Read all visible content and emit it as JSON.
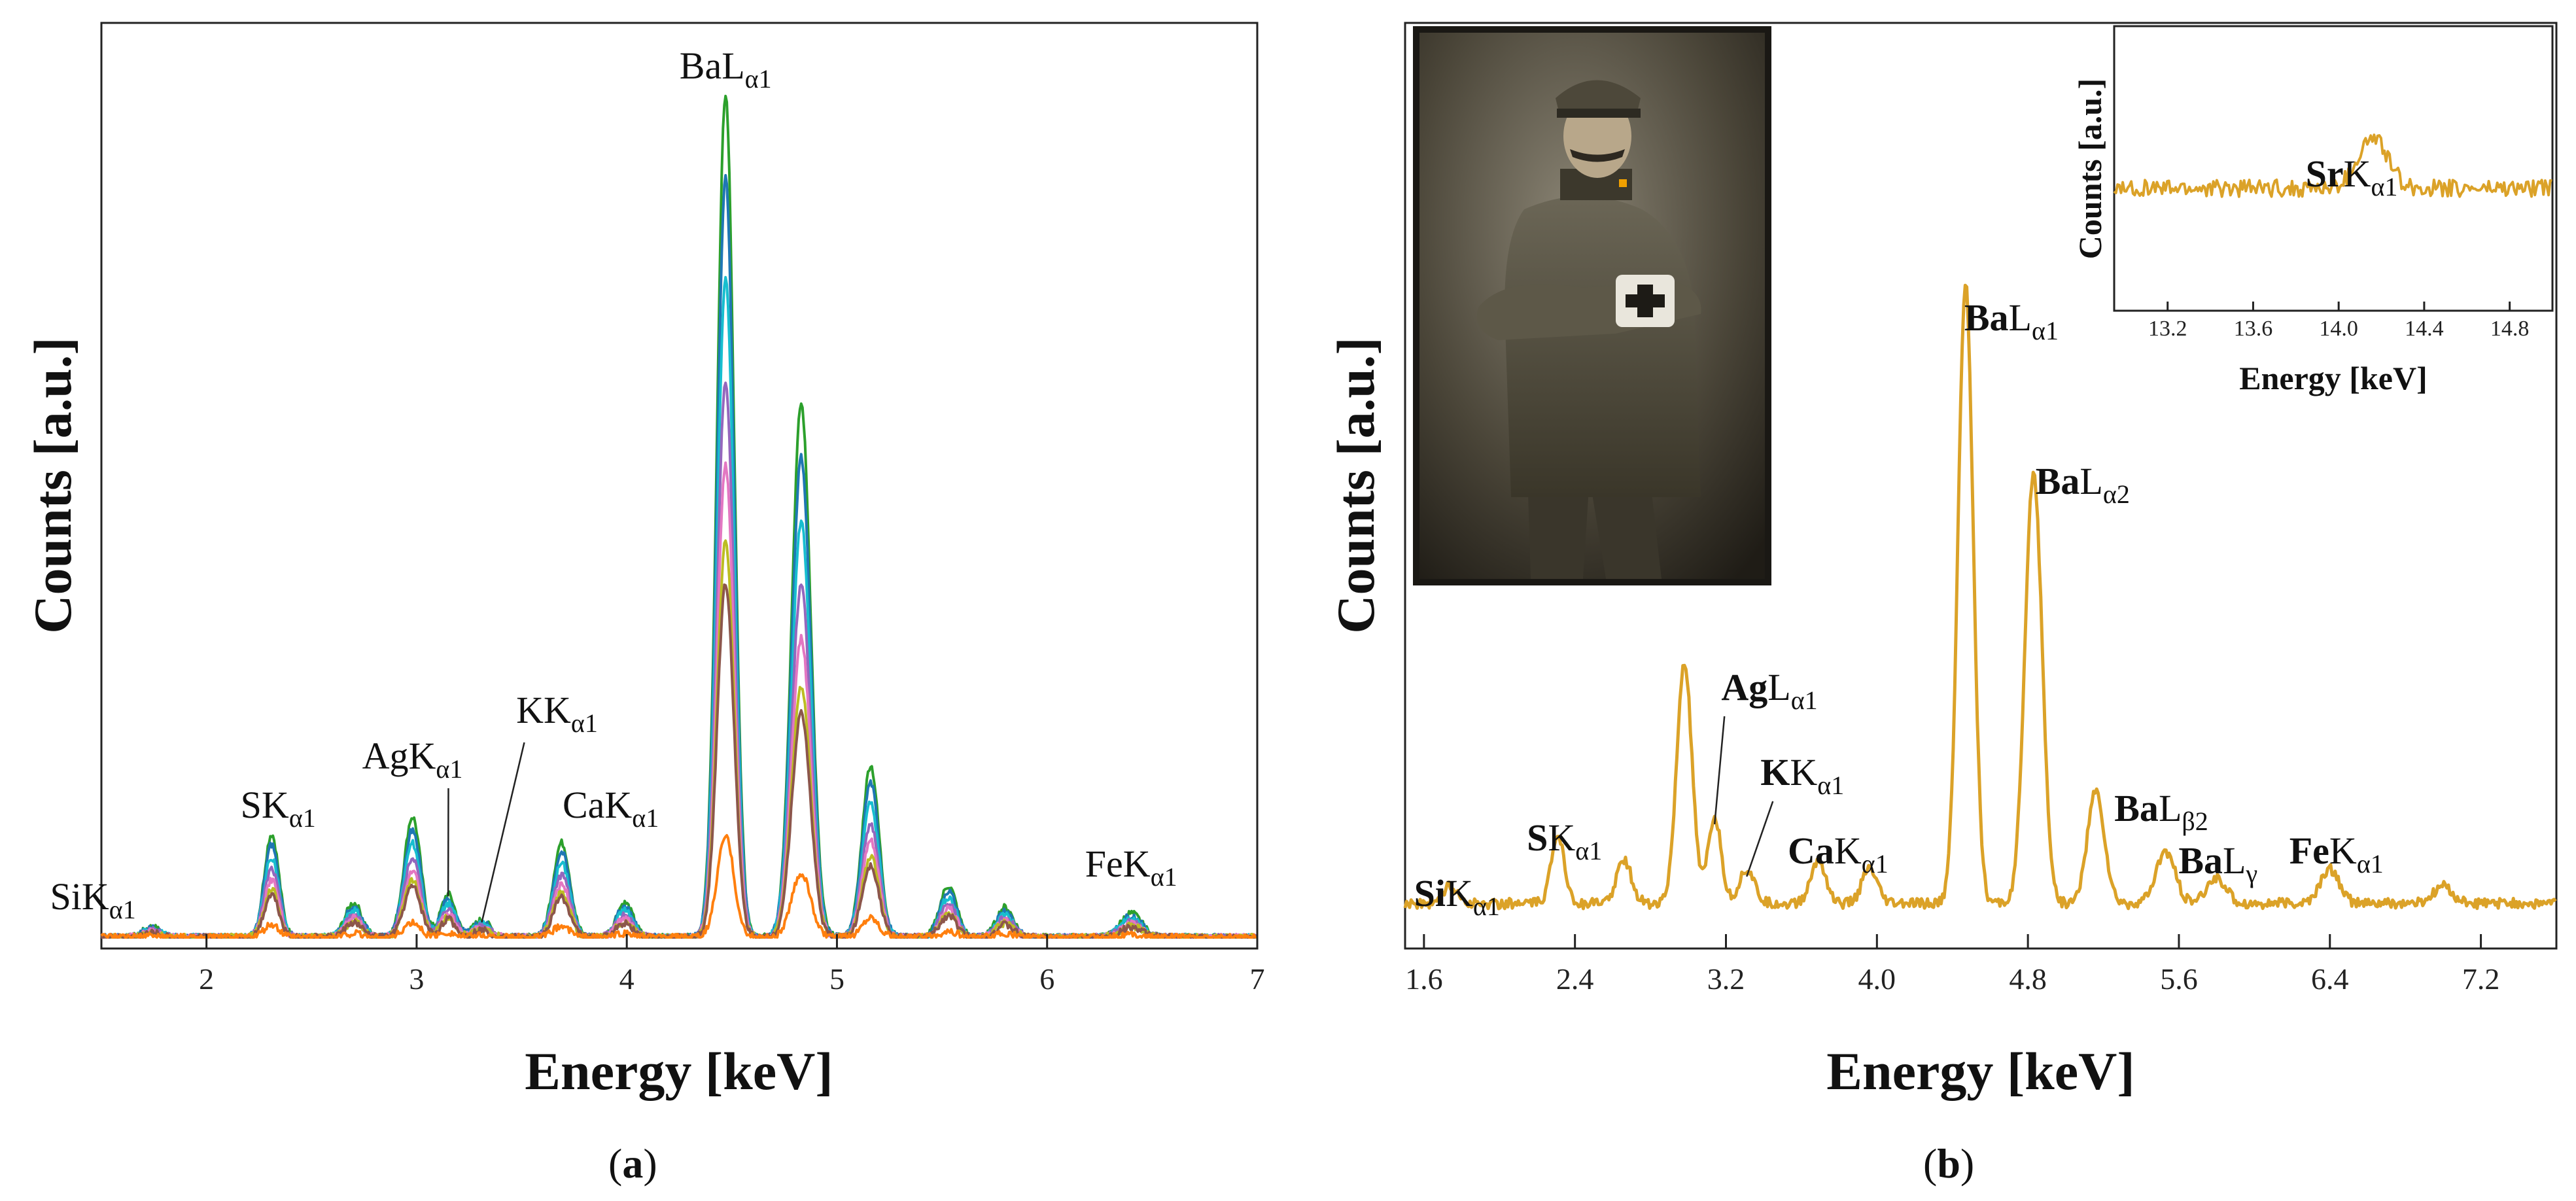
{
  "chart_data": [
    {
      "panel": "a",
      "type": "line",
      "caption_open": "(",
      "caption_letter": "a",
      "caption_close": ")",
      "xlabel": "Energy [keV]",
      "ylabel": "Counts [a.u.]",
      "xlim": [
        1.5,
        7
      ],
      "ylim": [
        0,
        1
      ],
      "xticks": [
        2,
        3,
        4,
        5,
        6,
        7
      ],
      "xtick_labels": [
        "2",
        "3",
        "4",
        "5",
        "6",
        "7"
      ],
      "peaks": [
        {
          "element": "Si",
          "line": "K",
          "sub": "α1",
          "energy": 1.74
        },
        {
          "element": "S",
          "line": "K",
          "sub": "α1",
          "energy": 2.31
        },
        {
          "element": "Ag",
          "line": "K",
          "sub": "α1",
          "energy": 2.98
        },
        {
          "element": "K",
          "line": "K",
          "sub": "α1",
          "energy": 3.31
        },
        {
          "element": "Ca",
          "line": "K",
          "sub": "α1",
          "energy": 3.69
        },
        {
          "element": "Ba",
          "line": "L",
          "sub": "α1",
          "energy": 4.47
        },
        {
          "element": "Fe",
          "line": "K",
          "sub": "α1",
          "energy": 6.4
        }
      ],
      "spectrum_components": [
        {
          "energy": 1.74,
          "height": 0.012,
          "width": 0.04
        },
        {
          "energy": 2.31,
          "height": 0.12,
          "width": 0.035
        },
        {
          "energy": 2.7,
          "height": 0.04,
          "width": 0.04
        },
        {
          "energy": 2.98,
          "height": 0.14,
          "width": 0.04
        },
        {
          "energy": 3.15,
          "height": 0.05,
          "width": 0.035
        },
        {
          "energy": 3.31,
          "height": 0.02,
          "width": 0.04
        },
        {
          "energy": 3.69,
          "height": 0.11,
          "width": 0.04
        },
        {
          "energy": 3.99,
          "height": 0.04,
          "width": 0.04
        },
        {
          "energy": 4.47,
          "height": 0.98,
          "width": 0.04
        },
        {
          "energy": 4.83,
          "height": 0.62,
          "width": 0.045
        },
        {
          "energy": 5.16,
          "height": 0.2,
          "width": 0.04
        },
        {
          "energy": 5.53,
          "height": 0.06,
          "width": 0.04
        },
        {
          "energy": 5.8,
          "height": 0.035,
          "width": 0.04
        },
        {
          "energy": 6.4,
          "height": 0.028,
          "width": 0.05
        }
      ],
      "series_scales": [
        1.0,
        0.9,
        0.78,
        0.66,
        0.56,
        0.47,
        0.42,
        0.12
      ],
      "series_colors": [
        "#2ca02c",
        "#1f77b4",
        "#17becf",
        "#9467bd",
        "#e377c2",
        "#bcbd22",
        "#8c564b",
        "#ff7f0e"
      ]
    },
    {
      "panel": "b",
      "type": "line",
      "caption_open": "(",
      "caption_letter": "b",
      "caption_close": ")",
      "xlabel": "Energy [keV]",
      "ylabel": "Counts [a.u.]",
      "xlim": [
        1.5,
        7.6
      ],
      "ylim": [
        0,
        1
      ],
      "xticks": [
        1.6,
        2.4,
        3.2,
        4.0,
        4.8,
        5.6,
        6.4,
        7.2
      ],
      "xtick_labels": [
        "1.6",
        "2.4",
        "3.2",
        "4.0",
        "4.8",
        "5.6",
        "6.4",
        "7.2"
      ],
      "color": "#dba228",
      "peaks": [
        {
          "element": "Si",
          "line": "K",
          "sub": "α1",
          "energy": 1.74
        },
        {
          "element": "S",
          "line": "K",
          "sub": "α1",
          "energy": 2.31
        },
        {
          "element": "Ag",
          "line": "L",
          "sub": "α1",
          "energy": 2.98
        },
        {
          "element": "K",
          "line": "K",
          "sub": "α1",
          "energy": 3.31
        },
        {
          "element": "Ca",
          "line": "K",
          "sub": "α1",
          "energy": 3.69
        },
        {
          "element": "Ba",
          "line": "L",
          "sub": "α1",
          "energy": 4.47
        },
        {
          "element": "Ba",
          "line": "L",
          "sub": "α2",
          "energy": 4.83
        },
        {
          "element": "Ba",
          "line": "L",
          "sub": "β2",
          "energy": 5.16
        },
        {
          "element": "Ba",
          "line": "L",
          "sub": "γ",
          "energy": 5.53
        },
        {
          "element": "Fe",
          "line": "K",
          "sub": "α1",
          "energy": 6.4
        }
      ],
      "spectrum_components": [
        {
          "energy": 1.74,
          "height": 0.02,
          "width": 0.04
        },
        {
          "energy": 2.31,
          "height": 0.08,
          "width": 0.035
        },
        {
          "energy": 2.66,
          "height": 0.05,
          "width": 0.04
        },
        {
          "energy": 2.98,
          "height": 0.28,
          "width": 0.04
        },
        {
          "energy": 3.14,
          "height": 0.1,
          "width": 0.035
        },
        {
          "energy": 3.31,
          "height": 0.04,
          "width": 0.04
        },
        {
          "energy": 3.69,
          "height": 0.05,
          "width": 0.04
        },
        {
          "energy": 3.96,
          "height": 0.04,
          "width": 0.04
        },
        {
          "energy": 4.47,
          "height": 0.72,
          "width": 0.04
        },
        {
          "energy": 4.83,
          "height": 0.5,
          "width": 0.045
        },
        {
          "energy": 5.16,
          "height": 0.13,
          "width": 0.045
        },
        {
          "energy": 5.53,
          "height": 0.06,
          "width": 0.05
        },
        {
          "energy": 5.8,
          "height": 0.03,
          "width": 0.05
        },
        {
          "energy": 6.4,
          "height": 0.04,
          "width": 0.05
        },
        {
          "energy": 7.0,
          "height": 0.02,
          "width": 0.05
        }
      ],
      "inset": {
        "xlabel": "Energy [keV]",
        "ylabel": "Counts [a.u.]",
        "xlim": [
          12.95,
          15.0
        ],
        "xticks": [
          13.2,
          13.6,
          14.0,
          14.4,
          14.8
        ],
        "xtick_labels": [
          "13.2",
          "13.6",
          "14.0",
          "14.4",
          "14.8"
        ],
        "peak": {
          "element": "Sr",
          "line": "K",
          "sub": "α1",
          "energy": 14.16
        },
        "components": [
          {
            "energy": 14.16,
            "height": 0.35,
            "width": 0.07
          }
        ]
      },
      "photo": {
        "subject": "portrait",
        "description_icon": "soldier-photo"
      }
    }
  ]
}
